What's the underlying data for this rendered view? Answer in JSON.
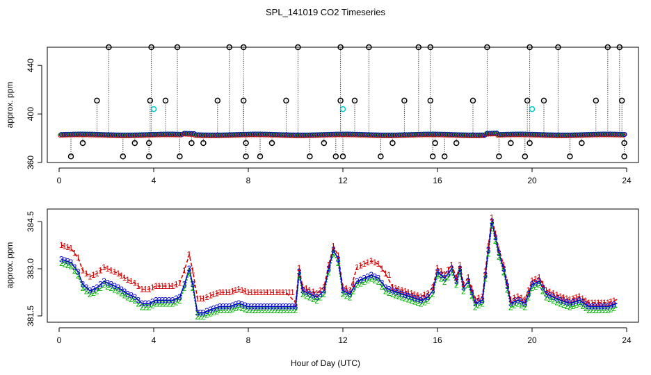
{
  "chart_data": {
    "title": "SPL_141019  CO2 Timeseries",
    "xlabel": "Hour of Day (UTC)",
    "panels": [
      {
        "id": "top",
        "type": "scatter",
        "ylabel": "approx. ppm",
        "xlim": [
          -0.5,
          24.5
        ],
        "ylim": [
          360,
          455
        ],
        "xticks": [
          "0",
          "4",
          "8",
          "12",
          "16",
          "20",
          "24"
        ],
        "yticks": [
          "360",
          "400",
          "440"
        ],
        "baseline_value": 383,
        "low_outlier_value": 365,
        "low_outlier_value2": 376,
        "mid_outlier_value": 411,
        "high_outlier_value": 455,
        "cyan_points": [
          {
            "x": 4.0,
            "y": 404
          },
          {
            "x": 12.0,
            "y": 404
          },
          {
            "x": 20.0,
            "y": 404
          }
        ],
        "outliers": [
          {
            "x": 0.5,
            "y": 365
          },
          {
            "x": 1.0,
            "y": 376
          },
          {
            "x": 1.6,
            "y": 411
          },
          {
            "x": 2.1,
            "y": 455
          },
          {
            "x": 2.7,
            "y": 365
          },
          {
            "x": 3.2,
            "y": 376
          },
          {
            "x": 3.8,
            "y": 365
          },
          {
            "x": 3.85,
            "y": 411
          },
          {
            "x": 3.9,
            "y": 455
          },
          {
            "x": 3.8,
            "y": 376
          },
          {
            "x": 4.5,
            "y": 411
          },
          {
            "x": 5.0,
            "y": 455
          },
          {
            "x": 5.1,
            "y": 365
          },
          {
            "x": 5.6,
            "y": 376
          },
          {
            "x": 6.1,
            "y": 376
          },
          {
            "x": 6.7,
            "y": 411
          },
          {
            "x": 7.2,
            "y": 455
          },
          {
            "x": 7.8,
            "y": 455
          },
          {
            "x": 7.8,
            "y": 411
          },
          {
            "x": 7.9,
            "y": 365
          },
          {
            "x": 7.9,
            "y": 376
          },
          {
            "x": 8.5,
            "y": 365
          },
          {
            "x": 9.0,
            "y": 376
          },
          {
            "x": 9.6,
            "y": 411
          },
          {
            "x": 10.1,
            "y": 455
          },
          {
            "x": 10.6,
            "y": 365
          },
          {
            "x": 11.2,
            "y": 376
          },
          {
            "x": 11.7,
            "y": 365
          },
          {
            "x": 11.9,
            "y": 411
          },
          {
            "x": 11.9,
            "y": 455
          },
          {
            "x": 12.0,
            "y": 365
          },
          {
            "x": 12.5,
            "y": 411
          },
          {
            "x": 13.1,
            "y": 455
          },
          {
            "x": 13.6,
            "y": 365
          },
          {
            "x": 14.1,
            "y": 376
          },
          {
            "x": 14.6,
            "y": 411
          },
          {
            "x": 15.2,
            "y": 455
          },
          {
            "x": 15.7,
            "y": 455
          },
          {
            "x": 15.7,
            "y": 411
          },
          {
            "x": 15.8,
            "y": 365
          },
          {
            "x": 15.9,
            "y": 376
          },
          {
            "x": 16.3,
            "y": 365
          },
          {
            "x": 16.8,
            "y": 376
          },
          {
            "x": 17.5,
            "y": 411
          },
          {
            "x": 18.1,
            "y": 455
          },
          {
            "x": 18.6,
            "y": 365
          },
          {
            "x": 19.1,
            "y": 376
          },
          {
            "x": 19.7,
            "y": 365
          },
          {
            "x": 19.8,
            "y": 411
          },
          {
            "x": 19.9,
            "y": 455
          },
          {
            "x": 19.9,
            "y": 376
          },
          {
            "x": 20.5,
            "y": 411
          },
          {
            "x": 21.1,
            "y": 455
          },
          {
            "x": 21.6,
            "y": 365
          },
          {
            "x": 22.1,
            "y": 376
          },
          {
            "x": 22.7,
            "y": 411
          },
          {
            "x": 23.2,
            "y": 455
          },
          {
            "x": 23.7,
            "y": 455
          },
          {
            "x": 23.8,
            "y": 411
          },
          {
            "x": 23.9,
            "y": 365
          },
          {
            "x": 23.9,
            "y": 376
          }
        ]
      },
      {
        "id": "bottom",
        "type": "line",
        "ylabel": "approx. ppm",
        "xlim": [
          -0.5,
          24.5
        ],
        "ylim": [
          381.3,
          384.9
        ],
        "xticks": [
          "0",
          "4",
          "8",
          "12",
          "16",
          "20",
          "24"
        ],
        "yticks": [
          "381.5",
          "383.0",
          "384.5"
        ],
        "series": [
          {
            "name": "1",
            "symbol": "1",
            "color": "#d40000"
          },
          {
            "name": "2",
            "symbol": "2",
            "color": "#00b000"
          },
          {
            "name": "3",
            "symbol": "3",
            "color": "#0000cc"
          }
        ],
        "base_points": [
          [
            0.1,
            383.3
          ],
          [
            0.5,
            383.2
          ],
          [
            0.8,
            382.9
          ],
          [
            1.0,
            382.5
          ],
          [
            1.3,
            382.3
          ],
          [
            1.6,
            382.4
          ],
          [
            1.9,
            382.6
          ],
          [
            2.2,
            382.5
          ],
          [
            2.5,
            382.4
          ],
          [
            2.9,
            382.2
          ],
          [
            3.2,
            382.1
          ],
          [
            3.5,
            381.9
          ],
          [
            3.8,
            381.9
          ],
          [
            4.1,
            382.0
          ],
          [
            4.5,
            382.0
          ],
          [
            4.8,
            382.0
          ],
          [
            5.1,
            382.1
          ],
          [
            5.3,
            382.5
          ],
          [
            5.5,
            383.0
          ],
          [
            5.65,
            382.5
          ],
          [
            5.85,
            381.6
          ],
          [
            6.1,
            381.6
          ],
          [
            6.4,
            381.7
          ],
          [
            6.8,
            381.8
          ],
          [
            7.2,
            381.8
          ],
          [
            7.6,
            381.9
          ],
          [
            8.0,
            381.8
          ],
          [
            8.4,
            381.8
          ],
          [
            8.8,
            381.8
          ],
          [
            9.2,
            381.8
          ],
          [
            9.6,
            381.8
          ],
          [
            10.0,
            381.8
          ],
          [
            10.15,
            382.9
          ],
          [
            10.3,
            382.3
          ],
          [
            10.6,
            382.2
          ],
          [
            10.9,
            382.1
          ],
          [
            11.2,
            382.3
          ],
          [
            11.4,
            383.0
          ],
          [
            11.6,
            383.6
          ],
          [
            11.8,
            383.3
          ],
          [
            12.0,
            382.3
          ],
          [
            12.3,
            382.2
          ],
          [
            12.6,
            382.6
          ],
          [
            12.9,
            382.7
          ],
          [
            13.2,
            382.8
          ],
          [
            13.5,
            382.7
          ],
          [
            13.8,
            382.4
          ],
          [
            14.1,
            382.3
          ],
          [
            14.5,
            382.2
          ],
          [
            14.9,
            382.1
          ],
          [
            15.3,
            382.0
          ],
          [
            15.6,
            382.1
          ],
          [
            15.8,
            382.3
          ],
          [
            16.0,
            382.9
          ],
          [
            16.3,
            382.7
          ],
          [
            16.6,
            383.0
          ],
          [
            16.8,
            382.6
          ],
          [
            16.95,
            383.0
          ],
          [
            17.1,
            382.4
          ],
          [
            17.3,
            382.6
          ],
          [
            17.6,
            381.9
          ],
          [
            17.9,
            382.0
          ],
          [
            18.15,
            383.6
          ],
          [
            18.3,
            384.5
          ],
          [
            18.6,
            383.5
          ],
          [
            18.8,
            383.0
          ],
          [
            19.1,
            381.9
          ],
          [
            19.4,
            382.0
          ],
          [
            19.7,
            381.9
          ],
          [
            20.0,
            382.5
          ],
          [
            20.3,
            382.6
          ],
          [
            20.6,
            382.2
          ],
          [
            20.9,
            382.1
          ],
          [
            21.2,
            382.0
          ],
          [
            21.6,
            381.9
          ],
          [
            22.0,
            382.0
          ],
          [
            22.4,
            381.8
          ],
          [
            22.8,
            381.8
          ],
          [
            23.2,
            381.8
          ],
          [
            23.6,
            381.9
          ]
        ]
      }
    ]
  }
}
